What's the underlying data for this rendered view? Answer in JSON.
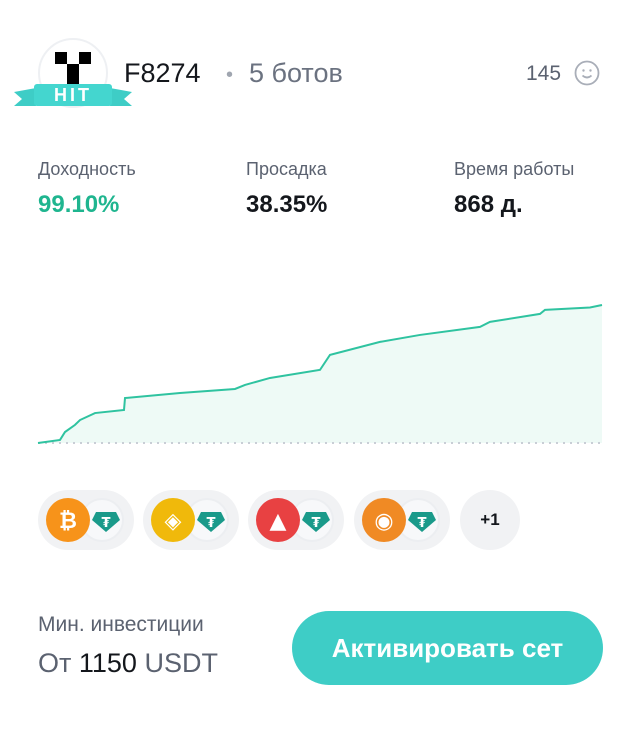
{
  "header": {
    "badge": "HIT",
    "bot_name": "F8274",
    "separator": "•",
    "bots_count": "5 ботов",
    "likes": "145",
    "likes_icon": "smile-icon"
  },
  "stats": [
    {
      "label": "Доходность",
      "value": "99.10%",
      "color": "#1fb58f"
    },
    {
      "label": "Просадка",
      "value": "38.35%",
      "color": "#14171c"
    },
    {
      "label": "Время работы",
      "value": "868 д.",
      "color": "#14171c"
    }
  ],
  "chart_data": {
    "type": "area",
    "color": "#2fc3a0",
    "values": [
      0,
      2.2,
      7.9,
      13,
      16.5,
      21.5,
      23.7,
      32.3,
      35.9,
      38.8,
      41.7,
      46.7,
      52.5,
      63.3,
      72.6,
      77.6,
      83.4,
      87,
      92.7,
      95.6,
      97.3,
      99.1
    ]
  },
  "pairs": [
    {
      "base": "BTC",
      "quote": "USDT",
      "base_color": "#f7931a",
      "base_icon": "bitcoin-icon"
    },
    {
      "base": "BNB",
      "quote": "USDT",
      "base_color": "#f0b90b",
      "base_icon": "bnb-icon"
    },
    {
      "base": "AVAX",
      "quote": "USDT",
      "base_color": "#e84142",
      "base_icon": "avalanche-icon"
    },
    {
      "base": "FLOKI",
      "quote": "USDT",
      "base_color": "#f08a24",
      "base_icon": "floki-icon"
    }
  ],
  "more_pairs": "+1",
  "footer": {
    "min_label": "Мин. инвестиции",
    "min_prefix": "От",
    "min_amount": "1150",
    "min_currency": "USDT",
    "activate_label": "Активировать сет"
  }
}
